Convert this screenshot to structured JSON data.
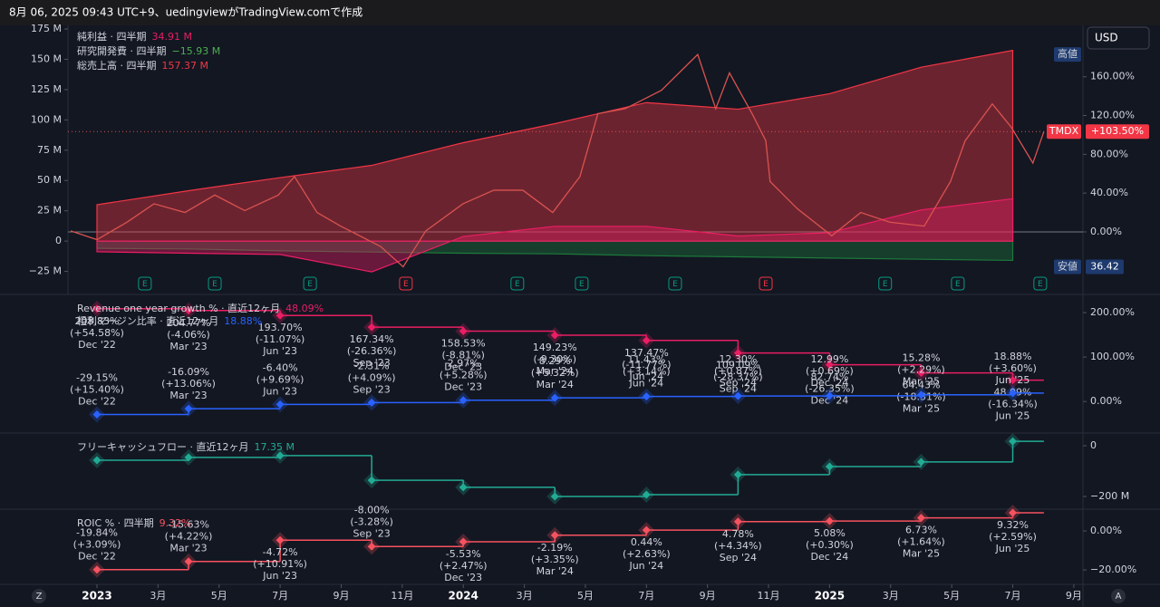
{
  "header": "8月 06, 2025 09:43 UTC+9、uedingviewがTradingView.comで作成",
  "ui": {
    "currency": "USD",
    "left_button": "Z",
    "right_button": "A"
  },
  "time_axis": {
    "xlim": [
      -0.95,
      32.3
    ],
    "xticks": [
      {
        "value": 0,
        "label": "2023"
      },
      {
        "value": 2,
        "label": "3月"
      },
      {
        "value": 4,
        "label": "5月"
      },
      {
        "value": 6,
        "label": "7月"
      },
      {
        "value": 8,
        "label": "9月"
      },
      {
        "value": 10,
        "label": "11月"
      },
      {
        "value": 12,
        "label": "2024"
      },
      {
        "value": 14,
        "label": "3月"
      },
      {
        "value": 16,
        "label": "5月"
      },
      {
        "value": 18,
        "label": "7月"
      },
      {
        "value": 20,
        "label": "9月"
      },
      {
        "value": 22,
        "label": "11月"
      },
      {
        "value": 24,
        "label": "2025"
      },
      {
        "value": 26,
        "label": "3月"
      },
      {
        "value": 28,
        "label": "5月"
      },
      {
        "value": 30,
        "label": "7月"
      },
      {
        "value": 32,
        "label": "9月"
      }
    ]
  },
  "chart_data": [
    {
      "type": "area",
      "ylim": [
        -44,
        178
      ],
      "yticks": [
        {
          "value": -25,
          "label": "−25 M"
        },
        0,
        {
          "value": 25,
          "label": "25 M"
        },
        {
          "value": 50,
          "label": "50 M"
        },
        {
          "value": 75,
          "label": "75 M"
        },
        {
          "value": 100,
          "label": "100 M"
        },
        {
          "value": 125,
          "label": "125 M"
        },
        {
          "value": 150,
          "label": "150 M"
        },
        {
          "value": 175,
          "label": "175 M"
        }
      ],
      "y2lim": [
        -64.5,
        213
      ],
      "y2ticks": [
        {
          "value": 0,
          "label": "0.00%"
        },
        {
          "value": 40,
          "label": "40.00%"
        },
        {
          "value": 80,
          "label": "80.00%"
        },
        {
          "value": 120,
          "label": "120.00%"
        },
        {
          "value": 160,
          "label": "160.00%"
        }
      ],
      "series": [
        {
          "name": "純利益 · 四半期",
          "color": "#e91e63",
          "x": [
            0,
            3,
            6,
            9,
            12,
            15,
            18,
            21,
            24,
            27,
            30
          ],
          "values": [
            -8.8,
            -10.0,
            -11.0,
            -25.4,
            3.8,
            12.2,
            12.2,
            4.2,
            6.9,
            25.7,
            34.91
          ],
          "value_labels": [
            null,
            null,
            null,
            null,
            null,
            null,
            null,
            null,
            null,
            null,
            "34.91 M"
          ]
        },
        {
          "name": "研究開発費 · 四半期",
          "color": "#1e7a3c",
          "x": [
            0,
            3,
            6,
            9,
            12,
            15,
            18,
            21,
            24,
            27,
            30
          ],
          "values": [
            -6,
            -6.5,
            -8,
            -9,
            -10,
            -10.5,
            -12,
            -13,
            -14,
            -15,
            -15.93
          ],
          "value_labels": [
            null,
            null,
            null,
            null,
            null,
            null,
            null,
            null,
            null,
            null,
            "−15.93 M"
          ]
        },
        {
          "name": "総売上高 · 四半期",
          "color": "#f23645",
          "x": [
            0,
            3,
            6,
            9,
            12,
            15,
            18,
            21,
            24,
            27,
            30
          ],
          "values": [
            30.0,
            41.6,
            52.4,
            62.5,
            81.2,
            96.9,
            114.3,
            108.8,
            121.6,
            143.5,
            157.37
          ],
          "value_labels": [
            null,
            null,
            null,
            null,
            null,
            null,
            null,
            null,
            null,
            null,
            "157.37 M"
          ]
        },
        {
          "name": "TMDX",
          "type": "line",
          "axis": "y2",
          "color": "#d9534f",
          "x": [
            -0.86,
            0,
            0.98,
            1.87,
            2.88,
            3.86,
            4.84,
            5.94,
            6.47,
            7.21,
            7.98,
            9.29,
            10.03,
            10.77,
            11.99,
            13.0,
            13.95,
            14.93,
            15.82,
            16.41,
            17.3,
            18.49,
            19.68,
            20.27,
            20.72,
            21.46,
            21.91,
            22.05,
            22.94,
            24.07,
            25.02,
            25.97,
            27.1,
            27.96,
            28.44,
            29.33,
            29.95,
            30.66,
            31.02
          ],
          "values": [
            1,
            -8,
            10,
            29,
            20,
            38,
            22,
            38,
            57,
            20,
            6,
            -15,
            -36,
            1,
            29,
            43,
            43,
            20,
            57,
            122,
            127,
            146,
            183,
            127,
            164,
            122,
            94,
            52,
            24,
            -4,
            20,
            10,
            6,
            52,
            94,
            132,
            108,
            71,
            103.5
          ],
          "value_labels": [
            null,
            null,
            null,
            null,
            null,
            null,
            null,
            null,
            null,
            null,
            null,
            null,
            null,
            null,
            null,
            null,
            null,
            null,
            null,
            null,
            null,
            null,
            null,
            null,
            null,
            null,
            null,
            null,
            null,
            null,
            null,
            null,
            null,
            null,
            null,
            null,
            null,
            null,
            "+103.50%"
          ]
        }
      ],
      "high": {
        "label": "高値"
      },
      "low": {
        "label": "安値",
        "value": 36.42
      },
      "earnings": {
        "label": "E",
        "x": [
          1.57,
          3.86,
          6.98,
          10.12,
          13.77,
          15.88,
          18.94,
          21.91,
          25.82,
          28.2,
          30.9
        ],
        "colors": [
          "#089981",
          "#089981",
          "#089981",
          "#f23645",
          "#089981",
          "#089981",
          "#089981",
          "#f23645",
          "#089981",
          "#089981",
          "#089981"
        ]
      }
    },
    {
      "type": "step",
      "ylim": [
        -71,
        241
      ],
      "yticks": [
        {
          "value": 0,
          "label": "0.00%"
        },
        {
          "value": 100,
          "label": "100.00%"
        },
        {
          "value": 200,
          "label": "200.00%"
        }
      ],
      "series": [
        {
          "name": "Revenue one year growth % · 直近12ヶ月",
          "color": "#e91e63",
          "x": [
            0,
            3,
            6,
            9,
            12,
            15,
            18,
            21,
            24,
            27,
            30
          ],
          "values": [
            208.83,
            204.77,
            193.7,
            167.34,
            158.53,
            149.23,
            137.47,
            109.09,
            82.74,
            64.43,
            48.09
          ],
          "value_labels": [
            "208.83%",
            "204.77%",
            "193.70%",
            "167.34%",
            "158.53%",
            "149.23%",
            "137.47%",
            "109.09%",
            "82.74%",
            "64.43%",
            "48.09%"
          ],
          "changes": [
            54.58,
            -4.06,
            -11.07,
            -26.36,
            -8.81,
            -9.3,
            -11.77,
            -28.37,
            -26.35,
            -18.31,
            -16.34
          ],
          "change_labels": [
            "(+54.58%)",
            "(-4.06%)",
            "(-11.07%)",
            "(-26.36%)",
            "(-8.81%)",
            "(-9.30%)",
            "(-11.77%)",
            "(-28.37%)",
            "(-26.35%)",
            "(-18.31%)",
            "(-16.34%)"
          ],
          "periods": [
            "Dec '22",
            "Mar '23",
            "Jun '23",
            "Sep '23",
            "Dec '23",
            "Mar '24",
            "Jun '24",
            "Sep '24",
            "Dec '24",
            "Mar '25",
            "Jun '25"
          ]
        },
        {
          "name": "粗利マージン比率 · 直近12ヶ月",
          "color": "#2962ff",
          "x": [
            0,
            3,
            6,
            9,
            12,
            15,
            18,
            21,
            24,
            27,
            30
          ],
          "values": [
            -29.15,
            -16.09,
            -6.4,
            -2.31,
            2.97,
            8.29,
            11.43,
            12.3,
            12.99,
            15.28,
            18.88
          ],
          "value_labels": [
            "-29.15%",
            "-16.09%",
            "-6.40%",
            "-2.31%",
            "2.97%",
            "8.29%",
            "11.43%",
            "12.30%",
            "12.99%",
            "15.28%",
            "18.88%"
          ],
          "changes": [
            15.4,
            13.06,
            9.69,
            4.09,
            5.28,
            5.32,
            3.14,
            0.87,
            0.69,
            2.29,
            3.6
          ],
          "change_labels": [
            "(+15.40%)",
            "(+13.06%)",
            "(+9.69%)",
            "(+4.09%)",
            "(+5.28%)",
            "(+5.32%)",
            "(+3.14%)",
            "(+0.87%)",
            "(+0.69%)",
            "(+2.29%)",
            "(+3.60%)"
          ],
          "periods": [
            "Dec '22",
            "Mar '23",
            "Jun '23",
            "Sep '23",
            "Dec '23",
            "Mar '24",
            "Jun '24",
            "Sep '24",
            "Dec '24",
            "Mar '25",
            "Jun '25"
          ]
        }
      ]
    },
    {
      "type": "step",
      "ylim": [
        -250,
        50
      ],
      "yticks": [
        0,
        {
          "value": -200,
          "label": "−200 M"
        }
      ],
      "series": [
        {
          "name": "フリーキャッシュフロー · 直近12ヶ月",
          "color": "#22ab94",
          "x": [
            0,
            3,
            6,
            9,
            12,
            15,
            18,
            21,
            24,
            27,
            30
          ],
          "values": [
            -57,
            -46,
            -39,
            -136,
            -164,
            -200,
            -193,
            -114,
            -82,
            -64,
            17.35
          ],
          "value_labels": [
            null,
            null,
            null,
            null,
            null,
            null,
            null,
            null,
            null,
            null,
            "17.35 M"
          ]
        }
      ]
    },
    {
      "type": "step",
      "ylim": [
        -27.4,
        11.2
      ],
      "yticks": [
        {
          "value": 0,
          "label": "0.00%"
        },
        {
          "value": -20,
          "label": "−20.00%"
        }
      ],
      "series": [
        {
          "name": "ROIC % · 四半期",
          "color": "#f7525f",
          "x": [
            0,
            3,
            6,
            9,
            12,
            15,
            18,
            21,
            24,
            27,
            30
          ],
          "values": [
            -19.84,
            -15.63,
            -4.72,
            -8.0,
            -5.53,
            -2.19,
            0.44,
            4.78,
            5.08,
            6.73,
            9.32
          ],
          "value_labels": [
            "-19.84%",
            "-15.63%",
            "-4.72%",
            "-8.00%",
            "-5.53%",
            "-2.19%",
            "0.44%",
            "4.78%",
            "5.08%",
            "6.73%",
            "9.32%"
          ],
          "changes": [
            3.09,
            4.22,
            10.91,
            -3.28,
            2.47,
            3.35,
            2.63,
            4.34,
            0.3,
            1.64,
            2.59
          ],
          "change_labels": [
            "(+3.09%)",
            "(+4.22%)",
            "(+10.91%)",
            "(-3.28%)",
            "(+2.47%)",
            "(+3.35%)",
            "(+2.63%)",
            "(+4.34%)",
            "(+0.30%)",
            "(+1.64%)",
            "(+2.59%)"
          ],
          "periods": [
            "Dec '22",
            "Mar '23",
            "Jun '23",
            "Sep '23",
            "Dec '23",
            "Mar '24",
            "Jun '24",
            "Sep '24",
            "Dec '24",
            "Mar '25",
            "Jun '25"
          ]
        }
      ]
    }
  ]
}
